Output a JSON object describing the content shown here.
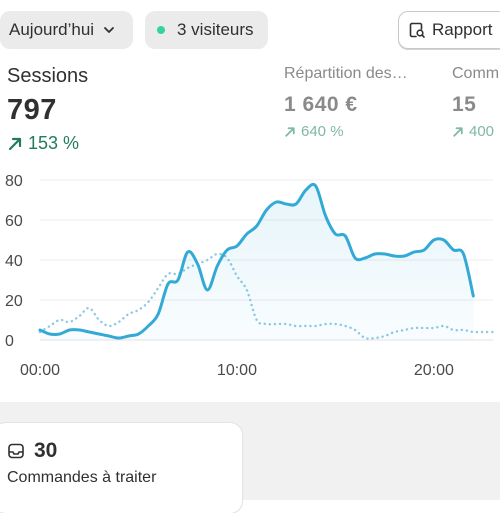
{
  "filters": {
    "date_label": "Aujourd’hui",
    "visitors_label": "3 visiteurs",
    "live_color": "#36d399",
    "report_label": "Rapport"
  },
  "metrics": [
    {
      "label": "Sessions",
      "value": "797",
      "change": "153 %",
      "change_icon": "arrow-up-right-icon"
    },
    {
      "label": "Répartition des…",
      "value": "1 640 €",
      "change": "640 %",
      "change_icon": "arrow-up-right-icon"
    },
    {
      "label": "Comm",
      "value": "15",
      "change": "400",
      "change_icon": "arrow-up-right-icon"
    }
  ],
  "orders": {
    "count": "30",
    "label": "Commandes à traiter",
    "icon": "inbox-icon"
  },
  "chart_data": {
    "type": "line",
    "x_labels": [
      "00:00",
      "10:00",
      "20:00"
    ],
    "y_ticks": [
      0,
      20,
      40,
      60,
      80
    ],
    "ylim": [
      0,
      80
    ],
    "xlim": [
      0,
      23
    ],
    "grid": true,
    "series": [
      {
        "style": "solid",
        "color": "#33a9d6",
        "x": [
          0,
          0.5,
          1,
          1.5,
          2,
          2.5,
          3,
          3.5,
          4,
          4.5,
          5,
          5.5,
          6,
          6.5,
          7,
          7.5,
          8,
          8.5,
          9,
          9.5,
          10,
          10.5,
          11,
          11.5,
          12,
          12.5,
          13,
          13.5,
          14,
          14.5,
          15,
          15.5,
          16,
          16.5,
          17,
          17.5,
          18,
          18.5,
          19,
          19.5,
          20,
          20.5,
          21,
          21.5,
          22
        ],
        "values": [
          5,
          3,
          3,
          5,
          5,
          4,
          3,
          2,
          1,
          2,
          3,
          7,
          13,
          28,
          30,
          44,
          38,
          25,
          37,
          45,
          47,
          53,
          57,
          65,
          69,
          68,
          68,
          75,
          77,
          62,
          53,
          52,
          41,
          41,
          43,
          43,
          42,
          42,
          44,
          45,
          50,
          50,
          45,
          43,
          22
        ]
      },
      {
        "style": "dotted",
        "color": "#8cc9e3",
        "x": [
          0,
          0.5,
          1,
          1.5,
          2,
          2.5,
          3,
          3.5,
          4,
          4.5,
          5,
          5.5,
          6,
          6.5,
          7,
          7.5,
          8,
          8.5,
          9,
          9.5,
          10,
          10.5,
          11,
          11.5,
          12,
          12.5,
          13,
          13.5,
          14,
          14.5,
          15,
          15.5,
          16,
          16.5,
          17,
          17.5,
          18,
          18.5,
          19,
          19.5,
          20,
          20.5,
          21,
          21.5,
          22,
          22.5,
          23
        ],
        "values": [
          4,
          7,
          10,
          9,
          12,
          16,
          10,
          7,
          9,
          13,
          15,
          19,
          26,
          33,
          33,
          36,
          38,
          40,
          43,
          41,
          32,
          25,
          10,
          8,
          8,
          8,
          7,
          7,
          7,
          8,
          8,
          7,
          5,
          1,
          1,
          2,
          4,
          5,
          6,
          6,
          6,
          7,
          5,
          5,
          4,
          4,
          4
        ]
      }
    ]
  }
}
